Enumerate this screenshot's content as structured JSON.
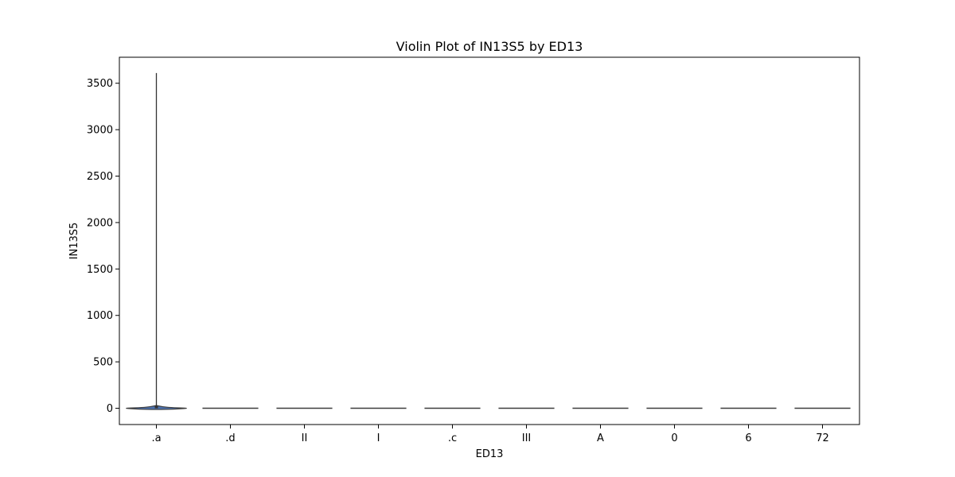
{
  "chart_data": {
    "type": "violin",
    "title": "Violin Plot of IN13S5 by ED13",
    "xlabel": "ED13",
    "ylabel": "IN13S5",
    "categories": [
      ".a",
      ".d",
      "II",
      "I",
      ".c",
      "III",
      "A",
      "0",
      "6",
      "72"
    ],
    "ylim": [
      -175,
      3780
    ],
    "yticks": [
      0,
      500,
      1000,
      1500,
      2000,
      2500,
      3000,
      3500
    ],
    "grid": false,
    "violins": [
      {
        "category": ".a",
        "min": 0,
        "max": 3610,
        "q1": 0,
        "median": 0,
        "q3": 30,
        "peak_density": 1.0,
        "density_spread": 30
      },
      {
        "category": ".d",
        "min": 0,
        "max": 0,
        "q1": 0,
        "median": 0,
        "q3": 0,
        "peak_density": 1.0,
        "density_spread": 0
      },
      {
        "category": "II",
        "min": 0,
        "max": 0,
        "q1": 0,
        "median": 0,
        "q3": 0,
        "peak_density": 1.0,
        "density_spread": 0
      },
      {
        "category": "I",
        "min": 0,
        "max": 0,
        "q1": 0,
        "median": 0,
        "q3": 0,
        "peak_density": 1.0,
        "density_spread": 0
      },
      {
        "category": ".c",
        "min": 0,
        "max": 0,
        "q1": 0,
        "median": 0,
        "q3": 0,
        "peak_density": 1.0,
        "density_spread": 0
      },
      {
        "category": "III",
        "min": 0,
        "max": 0,
        "q1": 0,
        "median": 0,
        "q3": 0,
        "peak_density": 1.0,
        "density_spread": 0
      },
      {
        "category": "A",
        "min": 0,
        "max": 0,
        "q1": 0,
        "median": 0,
        "q3": 0,
        "peak_density": 1.0,
        "density_spread": 0
      },
      {
        "category": "0",
        "min": 0,
        "max": 0,
        "q1": 0,
        "median": 0,
        "q3": 0,
        "peak_density": 1.0,
        "density_spread": 0
      },
      {
        "category": "6",
        "min": 0,
        "max": 0,
        "q1": 0,
        "median": 0,
        "q3": 0,
        "peak_density": 1.0,
        "density_spread": 0
      },
      {
        "category": "72",
        "min": 0,
        "max": 0,
        "q1": 0,
        "median": 0,
        "q3": 0,
        "peak_density": 1.0,
        "density_spread": 0
      }
    ],
    "colors": {
      "violin_fill": "#4c72b0",
      "violin_edge": "#3c3c3c",
      "frame": "#000000"
    }
  }
}
